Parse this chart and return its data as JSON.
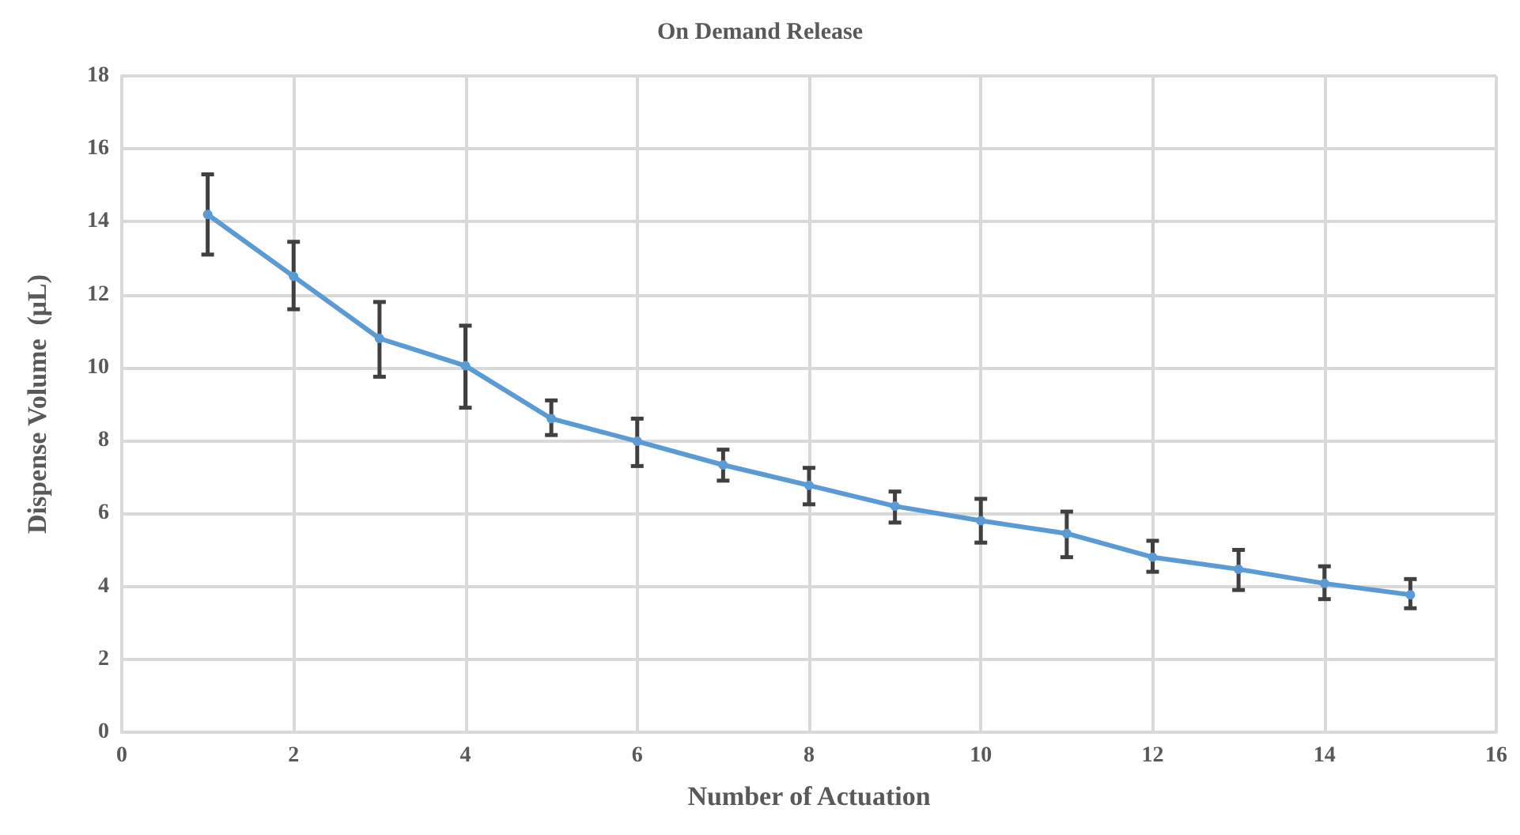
{
  "chart_data": {
    "type": "line",
    "title": "On Demand Release",
    "xlabel": "Number of Actuation",
    "ylabel": "Dispense Volume  (μL)",
    "x": [
      1,
      2,
      3,
      4,
      5,
      6,
      7,
      8,
      9,
      10,
      11,
      12,
      13,
      14,
      15
    ],
    "series": [
      {
        "color": "#5b9bd5",
        "values": [
          14.2,
          12.5,
          10.8,
          10.05,
          8.6,
          7.98,
          7.33,
          6.77,
          6.2,
          5.8,
          5.45,
          4.8,
          4.47,
          4.08,
          3.77
        ],
        "errors": [
          [
            13.1,
            15.3
          ],
          [
            11.6,
            13.45
          ],
          [
            9.75,
            11.8
          ],
          [
            8.9,
            11.15
          ],
          [
            8.15,
            9.1
          ],
          [
            7.3,
            8.6
          ],
          [
            6.9,
            7.75
          ],
          [
            6.25,
            7.25
          ],
          [
            5.75,
            6.6
          ],
          [
            5.2,
            6.4
          ],
          [
            4.8,
            6.05
          ],
          [
            4.4,
            5.25
          ],
          [
            3.9,
            5.0
          ],
          [
            3.65,
            4.55
          ],
          [
            3.4,
            4.2
          ]
        ]
      }
    ],
    "xlim": [
      0,
      16
    ],
    "xticks": [
      0,
      2,
      4,
      6,
      8,
      10,
      12,
      14,
      16
    ],
    "ylim": [
      0,
      18
    ],
    "yticks": [
      0,
      2,
      4,
      6,
      8,
      10,
      12,
      14,
      16,
      18
    ],
    "grid": true,
    "marker": "circle",
    "line_style": "solid"
  }
}
